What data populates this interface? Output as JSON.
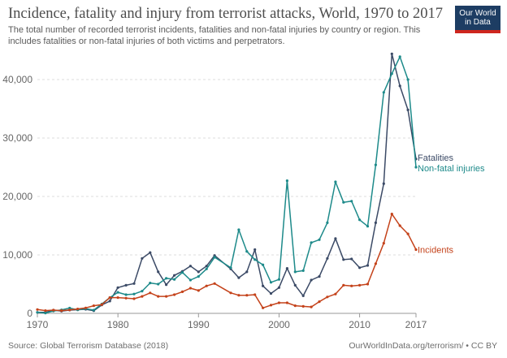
{
  "header": {
    "title": "Incidence, fatality and injury from terrorist attacks, World, 1970 to 2017",
    "subtitle": "The total number of recorded terrorist incidents, fatalities and non-fatal injuries by country or region. This includes fatalities or non-fatal injuries of both victims and perpetrators."
  },
  "logo": {
    "line1": "Our World",
    "line2": "in Data"
  },
  "footer": {
    "source": "Source: Global Terrorism Database (2018)",
    "credit": "OurWorldInData.org/terrorism/ • CC BY"
  },
  "colors": {
    "fatalities": "#3b4a66",
    "injuries": "#1d8a8a",
    "incidents": "#c4421a",
    "grid": "#dddddd",
    "axis": "#666666"
  },
  "chart_data": {
    "type": "line",
    "title": "Incidence, fatality and injury from terrorist attacks, World, 1970 to 2017",
    "xlabel": "",
    "ylabel": "",
    "xlim": [
      1970,
      2017
    ],
    "ylim": [
      0,
      45000
    ],
    "x_ticks": [
      1970,
      1980,
      1990,
      2000,
      2010,
      2017
    ],
    "y_ticks": [
      0,
      10000,
      20000,
      30000,
      40000
    ],
    "y_tick_labels": [
      "0",
      "10,000",
      "20,000",
      "30,000",
      "40,000"
    ],
    "x": [
      1970,
      1971,
      1972,
      1973,
      1974,
      1975,
      1976,
      1977,
      1978,
      1979,
      1980,
      1981,
      1982,
      1983,
      1984,
      1985,
      1986,
      1987,
      1988,
      1989,
      1990,
      1991,
      1992,
      1994,
      1995,
      1996,
      1997,
      1998,
      1999,
      2000,
      2001,
      2002,
      2003,
      2004,
      2005,
      2006,
      2007,
      2008,
      2009,
      2010,
      2011,
      2012,
      2013,
      2014,
      2015,
      2016,
      2017
    ],
    "series": [
      {
        "name": "Fatalities",
        "key": "fatalities",
        "values": [
          170,
          170,
          560,
          370,
          550,
          620,
          700,
          450,
          1450,
          2100,
          4400,
          4800,
          5100,
          9400,
          10400,
          7100,
          4900,
          6500,
          7200,
          8100,
          7100,
          8100,
          9900,
          7600,
          6100,
          7100,
          10900,
          4700,
          3400,
          4400,
          7700,
          4800,
          3000,
          5700,
          6300,
          9400,
          12800,
          9200,
          9300,
          7800,
          8200,
          15500,
          22200,
          44400,
          38900,
          34800,
          26400
        ]
      },
      {
        "name": "Non-fatal injuries",
        "key": "injuries",
        "values": [
          170,
          60,
          400,
          600,
          900,
          600,
          800,
          550,
          1600,
          2700,
          3600,
          3200,
          3300,
          3800,
          5200,
          5000,
          6000,
          5800,
          7000,
          5700,
          6300,
          7600,
          9600,
          7800,
          14300,
          10600,
          9200,
          8300,
          5300,
          5800,
          22700,
          7100,
          7300,
          12100,
          12600,
          15500,
          22500,
          19000,
          19200,
          16000,
          14900,
          25400,
          37800,
          41000,
          43900,
          40000,
          25000
        ]
      },
      {
        "name": "Incidents",
        "key": "incidents",
        "values": [
          650,
          470,
          560,
          470,
          580,
          750,
          930,
          1300,
          1500,
          2700,
          2700,
          2600,
          2500,
          2900,
          3500,
          2900,
          2900,
          3200,
          3700,
          4300,
          3900,
          4700,
          5100,
          3500,
          3100,
          3100,
          3200,
          930,
          1400,
          1800,
          1800,
          1300,
          1200,
          1100,
          2000,
          2800,
          3300,
          4800,
          4700,
          4800,
          5000,
          8500,
          12000,
          17000,
          15000,
          13600,
          10900
        ]
      }
    ],
    "end_labels": [
      {
        "series": "fatalities",
        "text": "Fatalities"
      },
      {
        "series": "injuries",
        "text": "Non-fatal injuries"
      },
      {
        "series": "incidents",
        "text": "Incidents"
      }
    ]
  }
}
